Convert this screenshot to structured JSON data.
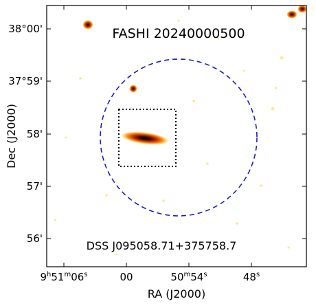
{
  "figure": {
    "title": "FASHI 20240000500",
    "caption": "DSS J095058.71+375758.7",
    "x_axis_label": "RA (J2000)",
    "y_axis_label": "Dec (J2000)",
    "x_ticks": [
      {
        "h": "9",
        "hs": "h",
        "m": "51",
        "ms": "m",
        "s": "06",
        "ss": "s"
      },
      {
        "s": "00"
      },
      {
        "m": "50",
        "ms": "m",
        "s": "54",
        "ss": "s"
      },
      {
        "s": "48",
        "ss": "s"
      }
    ],
    "y_ticks": [
      "38°00'",
      "37°59'",
      "58'",
      "57'",
      "56'"
    ],
    "circle_color": "#1a1acc",
    "box_color": "#000000",
    "colormap": "afmhot-reversed"
  }
}
